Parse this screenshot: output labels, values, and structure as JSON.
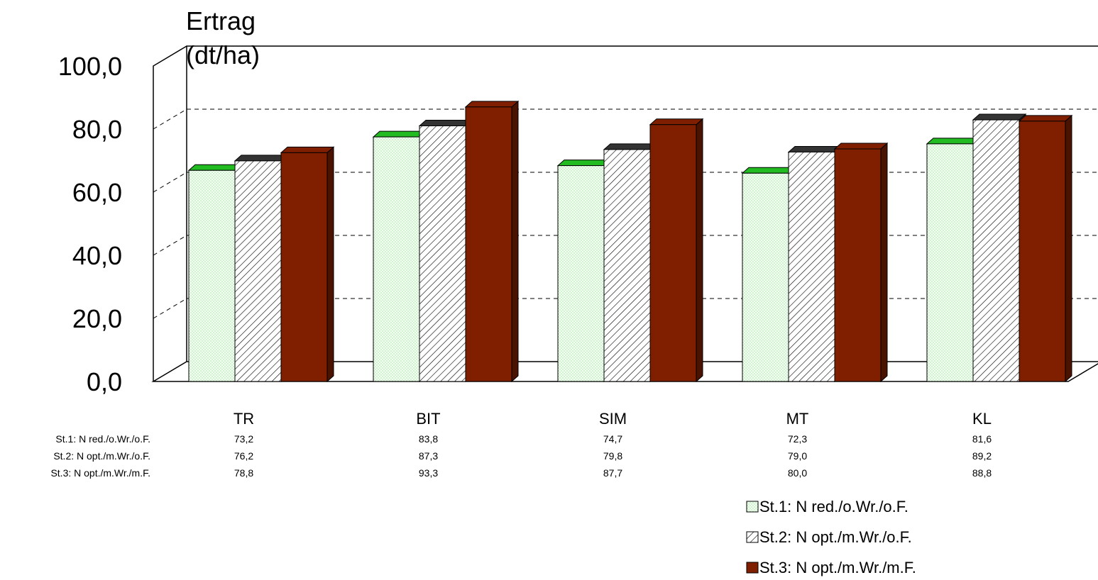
{
  "chart_data": {
    "type": "bar",
    "title": "",
    "ylabel": "Ertrag (dt/ha)",
    "ylabel_lines": [
      "Ertrag",
      "(dt/ha)"
    ],
    "xlabel": "",
    "ylim": [
      0,
      100
    ],
    "yticks": [
      "0,0",
      "20,0",
      "40,0",
      "60,0",
      "80,0",
      "100,0"
    ],
    "grid": true,
    "legend_position": "bottom-right",
    "categories": [
      "TR",
      "BIT",
      "SIM",
      "MT",
      "KL"
    ],
    "series": [
      {
        "name": "St.1: N red./o.Wr./o.F.",
        "values": [
          73.2,
          83.8,
          74.7,
          72.3,
          81.6
        ],
        "labels": [
          "73,2",
          "83,8",
          "74,7",
          "72,3",
          "81,6"
        ],
        "color": "#f0fff0",
        "pattern": "dotted"
      },
      {
        "name": "St.2: N opt./m.Wr./o.F.",
        "values": [
          76.2,
          87.3,
          79.8,
          79.0,
          89.2
        ],
        "labels": [
          "76,2",
          "87,3",
          "79,8",
          "79,0",
          "89,2"
        ],
        "color": "#ffffff",
        "pattern": "hatched"
      },
      {
        "name": "St.3: N opt./m.Wr./m.F.",
        "values": [
          78.8,
          93.3,
          87.7,
          80.0,
          88.8
        ],
        "labels": [
          "78,8",
          "93,3",
          "87,7",
          "80,0",
          "88,8"
        ],
        "color": "#7f1f00",
        "pattern": "solid"
      }
    ],
    "colors": {
      "st1_top": "#22bb22",
      "st2_top": "#333333",
      "st3_top": "#7f1f00",
      "st3_side": "#4a1200",
      "st1_side": "#a9b8a9",
      "st2_side": "#555555"
    }
  }
}
